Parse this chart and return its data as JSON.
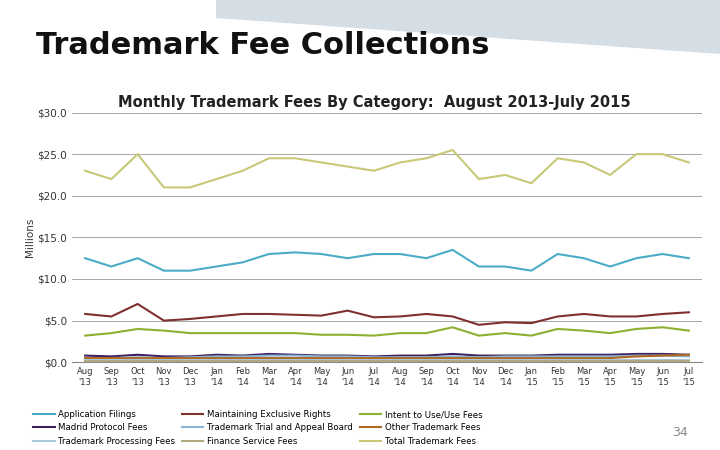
{
  "title": "Trademark Fee Collections",
  "subtitle": "Monthly Trademark Fees By Category:  August 2013-July 2015",
  "ylabel": "Millions",
  "ylim": [
    0,
    30
  ],
  "yticks": [
    0,
    5,
    10,
    15,
    20,
    25,
    30
  ],
  "ytick_labels": [
    "$0.0",
    "$5.0",
    "$10.0",
    "$15.0",
    "$20.0",
    "$25.0",
    "$30.0"
  ],
  "x_labels": [
    "Aug\n'13",
    "Sep\n'13",
    "Oct\n'13",
    "Nov\n'13",
    "Dec\n'13",
    "Jan\n'14",
    "Feb\n'14",
    "Mar\n'14",
    "Apr\n'14",
    "May\n'14",
    "Jun\n'14",
    "Jul\n'14",
    "Aug\n'14",
    "Sep\n'14",
    "Oct\n'14",
    "Nov\n'14",
    "Dec\n'14",
    "Jan\n'15",
    "Feb\n'15",
    "Mar\n'15",
    "Apr\n'15",
    "May\n'15",
    "Jun\n'15",
    "Jul\n'15"
  ],
  "series": {
    "Application Filings": {
      "color": "#4bacc6",
      "data": [
        12.5,
        11.5,
        12.5,
        11.0,
        11.0,
        11.5,
        12.0,
        13.0,
        13.2,
        13.0,
        12.5,
        13.0,
        13.0,
        12.5,
        13.5,
        11.5,
        11.5,
        11.0,
        13.0,
        12.5,
        11.5,
        12.5,
        13.0,
        12.5
      ]
    },
    "Maintaining Exclusive Rights": {
      "color": "#7f3030",
      "data": [
        5.8,
        5.5,
        7.0,
        5.0,
        5.2,
        5.5,
        5.8,
        5.8,
        5.7,
        5.6,
        6.2,
        5.4,
        5.5,
        5.8,
        5.5,
        4.5,
        4.8,
        4.7,
        5.5,
        5.8,
        5.5,
        5.5,
        5.8,
        6.0
      ]
    },
    "Intent to Use/Use Fees": {
      "color": "#8db030",
      "data": [
        3.2,
        3.5,
        4.0,
        3.8,
        3.5,
        3.5,
        3.5,
        3.5,
        3.5,
        3.3,
        3.3,
        3.2,
        3.5,
        3.5,
        4.2,
        3.2,
        3.5,
        3.2,
        4.0,
        3.8,
        3.5,
        4.0,
        4.2,
        3.8
      ]
    },
    "Madrid Protocol Fees": {
      "color": "#3d2060",
      "data": [
        0.8,
        0.7,
        0.9,
        0.7,
        0.7,
        0.9,
        0.8,
        1.0,
        0.9,
        0.8,
        0.8,
        0.7,
        0.8,
        0.8,
        1.0,
        0.8,
        0.8,
        0.8,
        0.9,
        0.9,
        0.9,
        1.0,
        1.0,
        0.9
      ]
    },
    "Trademark Trial and Appeal Board": {
      "color": "#8ab4d4",
      "data": [
        0.5,
        0.5,
        0.6,
        0.5,
        0.6,
        0.7,
        0.7,
        0.8,
        0.8,
        0.7,
        0.7,
        0.6,
        0.6,
        0.6,
        0.7,
        0.6,
        0.7,
        0.7,
        0.7,
        0.7,
        0.7,
        0.8,
        0.8,
        0.7
      ]
    },
    "Other Trademark Fees": {
      "color": "#b06820",
      "data": [
        0.5,
        0.5,
        0.5,
        0.5,
        0.5,
        0.5,
        0.5,
        0.5,
        0.5,
        0.5,
        0.5,
        0.5,
        0.5,
        0.5,
        0.5,
        0.5,
        0.5,
        0.5,
        0.5,
        0.5,
        0.5,
        0.7,
        0.8,
        0.9
      ]
    },
    "Trademark Processing Fees": {
      "color": "#a8c8dc",
      "data": [
        0.3,
        0.3,
        0.3,
        0.3,
        0.3,
        0.3,
        0.3,
        0.3,
        0.3,
        0.3,
        0.3,
        0.3,
        0.3,
        0.3,
        0.3,
        0.3,
        0.3,
        0.3,
        0.3,
        0.3,
        0.3,
        0.3,
        0.3,
        0.3
      ]
    },
    "Finance Service Fees": {
      "color": "#b0a880",
      "data": [
        0.15,
        0.15,
        0.15,
        0.15,
        0.15,
        0.15,
        0.15,
        0.15,
        0.15,
        0.15,
        0.15,
        0.15,
        0.15,
        0.15,
        0.15,
        0.15,
        0.15,
        0.15,
        0.15,
        0.15,
        0.15,
        0.15,
        0.15,
        0.15
      ]
    },
    "Total Trademark Fees": {
      "color": "#c8c878",
      "data": [
        23.0,
        22.0,
        25.0,
        21.0,
        21.0,
        22.0,
        23.0,
        24.5,
        24.5,
        24.0,
        23.5,
        23.0,
        24.0,
        24.5,
        25.5,
        22.0,
        22.5,
        21.5,
        24.5,
        24.0,
        22.5,
        25.0,
        25.0,
        24.0
      ]
    }
  },
  "background_color": "#ffffff",
  "grid_color": "#999999",
  "title_fontsize": 22,
  "subtitle_fontsize": 10.5
}
